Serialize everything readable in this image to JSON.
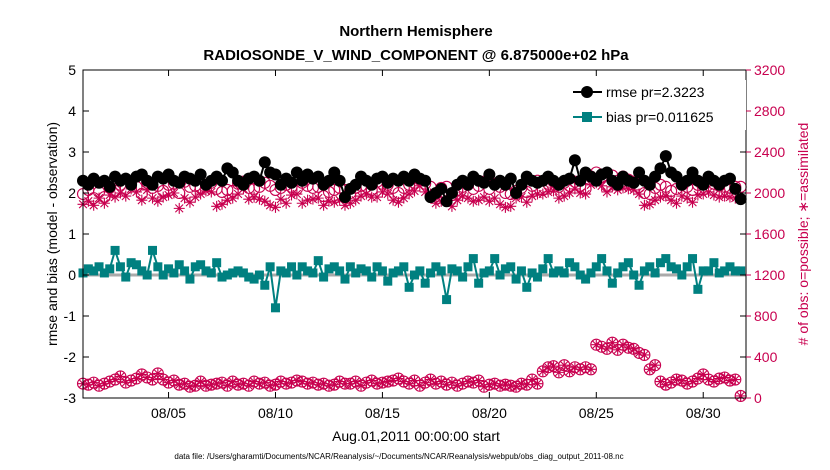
{
  "chart_data": {
    "type": "line",
    "title": "Northern Hemisphere",
    "subtitle": "RADIOSONDE_V_WIND_COMPONENT @ 6.875000e+02 hPa",
    "xlabel": "Aug.01,2011 00:00:00 start",
    "ylabel": "rmse and bias (model - observation)",
    "ylabel_right": "# of obs: o=possible; ∗=assimilated",
    "footer": "data file: /Users/gharamti/Documents/NCAR/Reanalysis/~/Documents/NCAR/Reanalysis/webpub/obs_diag_output_2011-08.nc",
    "xlim": [
      1,
      32
    ],
    "ylim": [
      -3,
      5
    ],
    "ylim_right": [
      0,
      3200
    ],
    "x_ticks": [
      5,
      10,
      15,
      20,
      25,
      30
    ],
    "x_tick_labels": [
      "08/05",
      "08/10",
      "08/15",
      "08/20",
      "08/25",
      "08/30"
    ],
    "y_ticks": [
      -3,
      -2,
      -1,
      0,
      1,
      2,
      3,
      4,
      5
    ],
    "y_tick_labels": [
      "-3",
      "-2",
      "-1",
      "0",
      "1",
      "2",
      "3",
      "4",
      "5"
    ],
    "y_ticks_right": [
      0,
      400,
      800,
      1200,
      1600,
      2000,
      2400,
      2800,
      3200
    ],
    "y_tick_labels_right": [
      "0",
      "400",
      "800",
      "1200",
      "1600",
      "2000",
      "2400",
      "2800",
      "3200"
    ],
    "legend": [
      "rmse pr=2.3223",
      "bias pr=0.011625"
    ],
    "legend_position": "top-right",
    "zero_line": true,
    "colors": {
      "rmse": "#000000",
      "bias": "#008080",
      "obs": "#c8004f",
      "zero": "#aaaaaa"
    },
    "x": [
      1.0,
      1.25,
      1.5,
      1.75,
      2.0,
      2.25,
      2.5,
      2.75,
      3.0,
      3.25,
      3.5,
      3.75,
      4.0,
      4.25,
      4.5,
      4.75,
      5.0,
      5.25,
      5.5,
      5.75,
      6.0,
      6.25,
      6.5,
      6.75,
      7.0,
      7.25,
      7.5,
      7.75,
      8.0,
      8.25,
      8.5,
      8.75,
      9.0,
      9.25,
      9.5,
      9.75,
      10.0,
      10.25,
      10.5,
      10.75,
      11.0,
      11.25,
      11.5,
      11.75,
      12.0,
      12.25,
      12.5,
      12.75,
      13.0,
      13.25,
      13.5,
      13.75,
      14.0,
      14.25,
      14.5,
      14.75,
      15.0,
      15.25,
      15.5,
      15.75,
      16.0,
      16.25,
      16.5,
      16.75,
      17.0,
      17.25,
      17.5,
      17.75,
      18.0,
      18.25,
      18.5,
      18.75,
      19.0,
      19.25,
      19.5,
      19.75,
      20.0,
      20.25,
      20.5,
      20.75,
      21.0,
      21.25,
      21.5,
      21.75,
      22.0,
      22.25,
      22.5,
      22.75,
      23.0,
      23.25,
      23.5,
      23.75,
      24.0,
      24.25,
      24.5,
      24.75,
      25.0,
      25.25,
      25.5,
      25.75,
      26.0,
      26.25,
      26.5,
      26.75,
      27.0,
      27.25,
      27.5,
      27.75,
      28.0,
      28.25,
      28.5,
      28.75,
      29.0,
      29.25,
      29.5,
      29.75,
      30.0,
      30.25,
      30.5,
      30.75,
      31.0,
      31.25,
      31.5,
      31.75
    ],
    "series": [
      {
        "name": "rmse",
        "marker": "filled-circle",
        "values": [
          2.3,
          2.2,
          2.35,
          2.25,
          2.3,
          2.15,
          2.4,
          2.3,
          2.35,
          2.2,
          2.4,
          2.45,
          2.3,
          2.2,
          2.4,
          2.35,
          2.45,
          2.3,
          2.25,
          2.4,
          2.35,
          2.3,
          2.45,
          2.2,
          2.3,
          2.4,
          2.3,
          2.6,
          2.5,
          2.3,
          2.2,
          2.35,
          2.4,
          2.3,
          2.75,
          2.5,
          2.45,
          2.2,
          2.35,
          2.25,
          2.5,
          2.3,
          2.45,
          2.35,
          2.4,
          2.2,
          2.3,
          2.5,
          2.3,
          1.9,
          2.1,
          2.2,
          2.4,
          2.3,
          2.2,
          2.35,
          2.4,
          2.25,
          2.35,
          2.3,
          2.4,
          2.3,
          2.45,
          2.35,
          2.3,
          1.9,
          2.0,
          2.1,
          1.8,
          2.0,
          2.2,
          2.3,
          2.2,
          2.4,
          2.3,
          2.25,
          2.45,
          2.2,
          2.3,
          2.2,
          2.35,
          2.0,
          2.2,
          2.4,
          2.3,
          2.25,
          2.3,
          2.4,
          2.3,
          2.2,
          2.3,
          2.35,
          2.8,
          2.3,
          2.5,
          2.4,
          2.3,
          2.45,
          2.5,
          2.3,
          2.2,
          2.4,
          2.3,
          2.25,
          2.5,
          2.3,
          2.2,
          2.4,
          2.6,
          2.9,
          2.5,
          2.4,
          2.2,
          2.3,
          2.5,
          2.3,
          2.2,
          2.4,
          2.3,
          2.2,
          2.3,
          2.35,
          2.1,
          1.85
        ]
      },
      {
        "name": "bias",
        "marker": "filled-square",
        "values": [
          0.05,
          0.15,
          0.1,
          0.2,
          0.05,
          0.15,
          0.6,
          0.2,
          -0.05,
          0.3,
          0.25,
          0.1,
          0.0,
          0.6,
          0.2,
          0.0,
          0.15,
          0.05,
          0.25,
          0.1,
          -0.1,
          0.2,
          0.25,
          0.1,
          0.05,
          0.3,
          -0.05,
          0.0,
          0.05,
          0.1,
          0.05,
          -0.05,
          -0.1,
          0.0,
          -0.25,
          0.2,
          -0.8,
          0.1,
          0.05,
          0.2,
          0.0,
          0.2,
          0.1,
          0.05,
          0.35,
          -0.05,
          0.15,
          0.2,
          0.1,
          -0.1,
          0.2,
          0.05,
          0.15,
          0.1,
          -0.05,
          0.2,
          0.1,
          -0.15,
          0.05,
          0.1,
          0.2,
          -0.3,
          0.0,
          0.1,
          -0.2,
          0.05,
          0.2,
          0.1,
          -0.6,
          0.15,
          0.1,
          -0.05,
          0.2,
          0.4,
          -0.2,
          0.05,
          0.1,
          0.4,
          0.0,
          0.15,
          0.2,
          -0.1,
          0.1,
          -0.3,
          0.05,
          -0.05,
          0.15,
          0.4,
          0.05,
          0.1,
          0.05,
          0.3,
          0.2,
          0.0,
          -0.1,
          0.05,
          0.2,
          0.4,
          0.1,
          -0.2,
          0.05,
          0.2,
          0.3,
          0.0,
          -0.25,
          0.1,
          0.2,
          0.05,
          0.3,
          0.4,
          0.2,
          0.15,
          0.0,
          0.2,
          0.4,
          -0.35,
          0.1,
          0.1,
          0.3,
          0.05,
          0.1,
          0.2,
          0.1,
          0.1
        ]
      },
      {
        "name": "possible",
        "axis": "right",
        "marker": "open-circle",
        "values": [
          1990,
          2030,
          1950,
          2010,
          1960,
          2050,
          2020,
          2080,
          2040,
          2100,
          2060,
          1990,
          2100,
          2050,
          2070,
          2020,
          2080,
          2090,
          2000,
          2110,
          2060,
          2070,
          2050,
          2080,
          2100,
          2040,
          2010,
          2030,
          2020,
          2090,
          2110,
          2050,
          2040,
          2060,
          2100,
          2070,
          2030,
          2050,
          2080,
          2060,
          2040,
          2100,
          2070,
          2050,
          2060,
          1970,
          2010,
          2030,
          2050,
          2030,
          2000,
          2050,
          2070,
          2060,
          2030,
          2110,
          2090,
          2080,
          2050,
          2000,
          2050,
          2080,
          2100,
          2130,
          2090,
          2060,
          1990,
          2050,
          2060,
          1980,
          2030,
          2060,
          2080,
          2040,
          2070,
          2110,
          2040,
          2090,
          2060,
          2000,
          1990,
          2020,
          2050,
          2010,
          2070,
          2120,
          2030,
          2090,
          2110,
          2060,
          2100,
          2070,
          2110,
          2070,
          2040,
          2160,
          2200,
          2150,
          2070,
          2170,
          2120,
          2160,
          2130,
          2110,
          2060,
          2000,
          1990,
          2050,
          2080,
          2060,
          2020,
          2040,
          2080,
          2060,
          2030,
          2080,
          2100,
          2120,
          2090,
          2070,
          2060,
          2050,
          2060,
          2060
        ]
      },
      {
        "name": "assimilated",
        "axis": "right",
        "marker": "asterisk",
        "values": [
          1890,
          1920,
          1880,
          1950,
          1900,
          1980,
          1960,
          2000,
          1970,
          2040,
          2010,
          1930,
          2030,
          1950,
          1920,
          1960,
          1980,
          2000,
          1850,
          1950,
          1910,
          1960,
          1990,
          2020,
          2010,
          1870,
          1890,
          1930,
          1950,
          1990,
          2040,
          1940,
          1960,
          1940,
          1920,
          1880,
          1860,
          1940,
          1900,
          1980,
          1990,
          1900,
          1930,
          1940,
          1950,
          1880,
          1920,
          1910,
          1930,
          1880,
          1900,
          1930,
          1970,
          1990,
          1960,
          1960,
          2010,
          1990,
          1930,
          1910,
          1950,
          1990,
          2020,
          2070,
          2010,
          1990,
          1900,
          1920,
          1960,
          1870,
          1930,
          1970,
          1950,
          1920,
          1930,
          1960,
          1920,
          1950,
          1890,
          1860,
          1870,
          1950,
          1960,
          1910,
          1970,
          1990,
          1990,
          2010,
          2020,
          1950,
          1970,
          2000,
          2040,
          2000,
          1990,
          2080,
          2100,
          2070,
          2010,
          2060,
          2030,
          2050,
          2040,
          2030,
          1990,
          1880,
          1890,
          1930,
          1960,
          1970,
          1930,
          1900,
          1970,
          1950,
          1910,
          1980,
          1990,
          2010,
          1980,
          1960,
          1970,
          1960,
          1950,
          1950
        ]
      },
      {
        "name": "possible-lower",
        "axis": "right",
        "marker": "open-circle-with-asterisk",
        "values": [
          140,
          130,
          150,
          120,
          140,
          160,
          180,
          210,
          150,
          170,
          190,
          230,
          200,
          180,
          240,
          180,
          150,
          170,
          130,
          140,
          110,
          120,
          160,
          120,
          130,
          140,
          150,
          120,
          160,
          130,
          140,
          120,
          160,
          140,
          150,
          120,
          130,
          160,
          140,
          150,
          170,
          160,
          140,
          150,
          130,
          140,
          120,
          130,
          160,
          140,
          140,
          160,
          120,
          150,
          170,
          140,
          150,
          160,
          170,
          190,
          160,
          140,
          170,
          120,
          150,
          180,
          140,
          160,
          130,
          150,
          120,
          140,
          160,
          150,
          170,
          110,
          130,
          140,
          120,
          130,
          120,
          110,
          140,
          130,
          180,
          140,
          260,
          300,
          310,
          250,
          320,
          260,
          300,
          280,
          300,
          280,
          520,
          500,
          480,
          540,
          470,
          520,
          490,
          480,
          440,
          420,
          280,
          320,
          160,
          130,
          150,
          180,
          170,
          140,
          160,
          190,
          230,
          180,
          160,
          190,
          200,
          170,
          180,
          20
        ]
      }
    ]
  }
}
